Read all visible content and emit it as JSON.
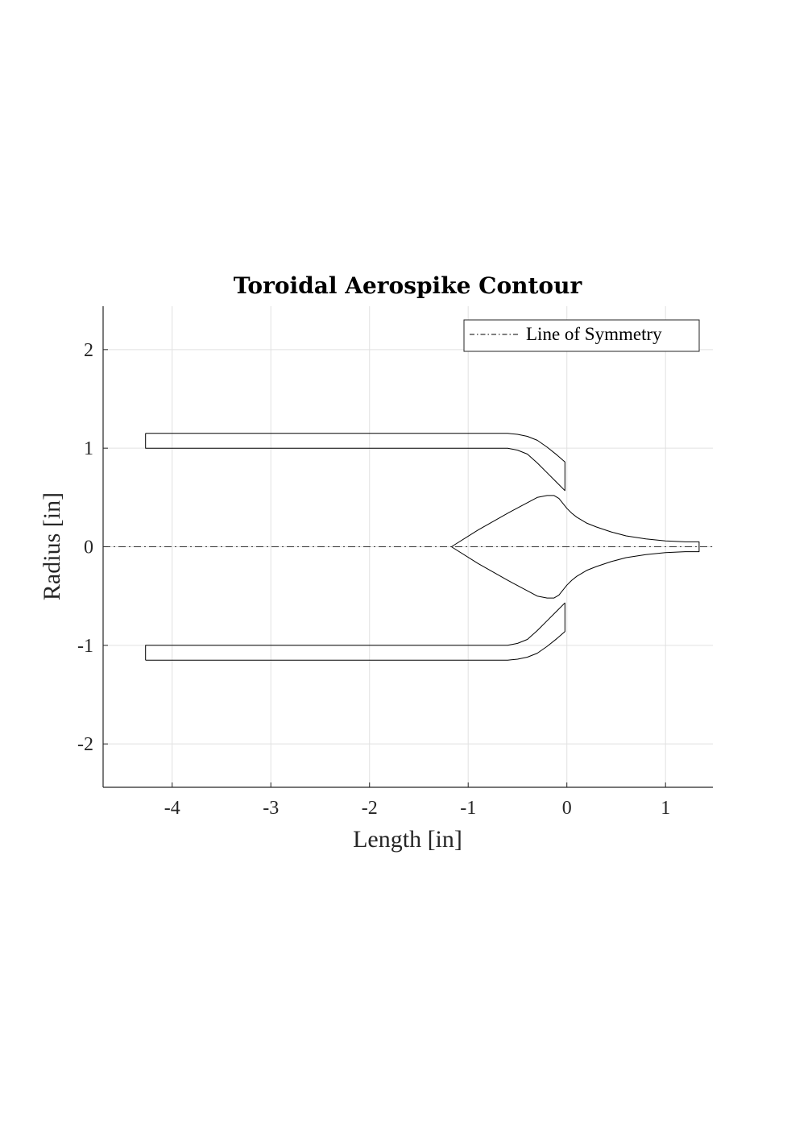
{
  "chart_data": {
    "type": "line",
    "title": "Toroidal Aerospike Contour",
    "xlabel": "Length [in]",
    "ylabel": "Radius [in]",
    "xlim": [
      -4.7,
      1.48
    ],
    "ylim": [
      -2.44,
      2.44
    ],
    "xticks": [
      -4,
      -3,
      -2,
      -1,
      0,
      1
    ],
    "yticks": [
      -2,
      -1,
      0,
      1,
      2
    ],
    "xtick_labels": [
      "-4",
      "-3",
      "-2",
      "-1",
      "0",
      "1"
    ],
    "ytick_labels": [
      "-2",
      "-1",
      "0",
      "1",
      "2"
    ],
    "grid": true,
    "legend_position": "top-right",
    "series": [
      {
        "name": "Line of Symmetry",
        "style": "dash-dot",
        "x": [
          -4.7,
          1.48
        ],
        "y": [
          0,
          0
        ]
      },
      {
        "style": "solid",
        "x": [
          -4.27,
          -0.6,
          -0.5,
          -0.4,
          -0.3,
          -0.2,
          -0.1,
          -0.02,
          -0.02,
          -0.1,
          -0.2,
          -0.3,
          -0.4,
          -0.5,
          -0.6,
          -4.27,
          -4.27
        ],
        "y": [
          1.15,
          1.15,
          1.14,
          1.12,
          1.08,
          1.01,
          0.93,
          0.86,
          0.57,
          0.65,
          0.75,
          0.85,
          0.94,
          0.98,
          1.0,
          1.0,
          1.15
        ]
      },
      {
        "style": "solid",
        "x": [
          -4.27,
          -0.6,
          -0.5,
          -0.4,
          -0.3,
          -0.2,
          -0.1,
          -0.02,
          -0.02,
          -0.1,
          -0.2,
          -0.3,
          -0.4,
          -0.5,
          -0.6,
          -4.27,
          -4.27
        ],
        "y": [
          -1.15,
          -1.15,
          -1.14,
          -1.12,
          -1.08,
          -1.01,
          -0.93,
          -0.86,
          -0.57,
          -0.65,
          -0.75,
          -0.85,
          -0.94,
          -0.98,
          -1.0,
          -1.0,
          -1.15
        ]
      },
      {
        "style": "solid",
        "x": [
          -1.17,
          -0.9,
          -0.6,
          -0.3,
          -0.2,
          -0.13,
          -0.08,
          -0.04,
          0.0,
          0.05,
          0.1,
          0.2,
          0.3,
          0.45,
          0.6,
          0.8,
          1.0,
          1.2,
          1.34,
          1.34,
          1.2,
          1.0,
          0.8,
          0.6,
          0.45,
          0.3,
          0.2,
          0.1,
          0.05,
          0.0,
          -0.04,
          -0.08,
          -0.13,
          -0.2,
          -0.3,
          -0.6,
          -0.9,
          -1.17
        ],
        "y": [
          0.0,
          0.17,
          0.34,
          0.5,
          0.52,
          0.52,
          0.49,
          0.44,
          0.39,
          0.34,
          0.3,
          0.24,
          0.2,
          0.15,
          0.11,
          0.08,
          0.06,
          0.05,
          0.05,
          -0.05,
          -0.05,
          -0.06,
          -0.08,
          -0.11,
          -0.15,
          -0.2,
          -0.24,
          -0.3,
          -0.34,
          -0.39,
          -0.44,
          -0.49,
          -0.52,
          -0.52,
          -0.5,
          -0.34,
          -0.17,
          0.0
        ]
      }
    ]
  }
}
